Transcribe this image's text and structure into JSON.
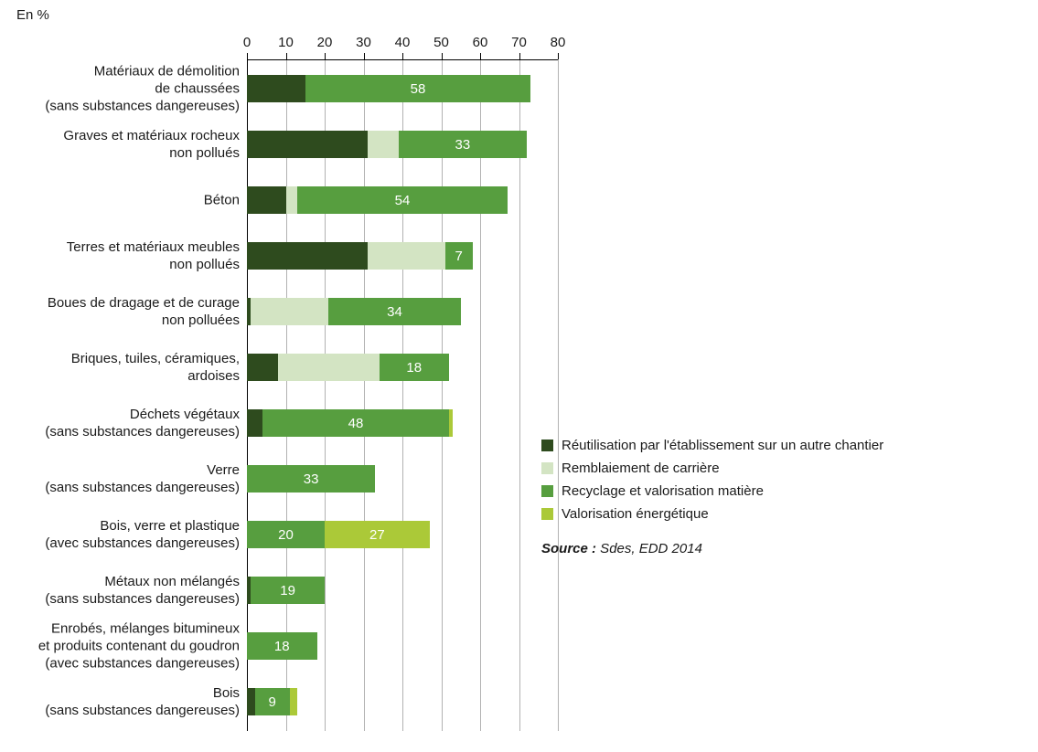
{
  "chart_data": {
    "type": "bar",
    "orientation": "horizontal",
    "stacked": true,
    "unit_label": "En %",
    "xlim": [
      0,
      80
    ],
    "x_ticks": [
      0,
      10,
      20,
      30,
      40,
      50,
      60,
      70,
      80
    ],
    "grid": true,
    "legend_position": "right",
    "series": [
      {
        "key": "reuse",
        "name": "Réutilisation par l'établissement sur un autre chantier",
        "color": "#2e4b1e"
      },
      {
        "key": "backfill",
        "name": "Remblaiement de carrière",
        "color": "#d3e4c3"
      },
      {
        "key": "recycle",
        "name": "Recyclage et valorisation matière",
        "color": "#579e3f"
      },
      {
        "key": "energy",
        "name": "Valorisation énergétique",
        "color": "#abc938"
      }
    ],
    "rows": [
      {
        "label_lines": [
          "Matériaux de démolition",
          "de chaussées",
          "(sans substances dangereuses)"
        ],
        "segments": [
          {
            "series": "reuse",
            "value": 15
          },
          {
            "series": "recycle",
            "value": 58,
            "label": "58"
          }
        ]
      },
      {
        "label_lines": [
          "Graves et matériaux rocheux",
          "non pollués"
        ],
        "segments": [
          {
            "series": "reuse",
            "value": 31
          },
          {
            "series": "backfill",
            "value": 8
          },
          {
            "series": "recycle",
            "value": 33,
            "label": "33"
          }
        ]
      },
      {
        "label_lines": [
          "Béton"
        ],
        "segments": [
          {
            "series": "reuse",
            "value": 10
          },
          {
            "series": "backfill",
            "value": 3
          },
          {
            "series": "recycle",
            "value": 54,
            "label": "54"
          }
        ]
      },
      {
        "label_lines": [
          "Terres et matériaux meubles",
          "non pollués"
        ],
        "segments": [
          {
            "series": "reuse",
            "value": 31
          },
          {
            "series": "backfill",
            "value": 20
          },
          {
            "series": "recycle",
            "value": 7,
            "label": "7"
          }
        ]
      },
      {
        "label_lines": [
          "Boues de dragage et de curage",
          "non polluées"
        ],
        "segments": [
          {
            "series": "reuse",
            "value": 1
          },
          {
            "series": "backfill",
            "value": 20
          },
          {
            "series": "recycle",
            "value": 34,
            "label": "34"
          }
        ]
      },
      {
        "label_lines": [
          "Briques, tuiles, céramiques,",
          "ardoises"
        ],
        "segments": [
          {
            "series": "reuse",
            "value": 8
          },
          {
            "series": "backfill",
            "value": 26
          },
          {
            "series": "recycle",
            "value": 18,
            "label": "18"
          }
        ]
      },
      {
        "label_lines": [
          "Déchets végétaux",
          "(sans substances dangereuses)"
        ],
        "segments": [
          {
            "series": "reuse",
            "value": 4
          },
          {
            "series": "recycle",
            "value": 48,
            "label": "48"
          },
          {
            "series": "energy",
            "value": 1
          }
        ]
      },
      {
        "label_lines": [
          "Verre",
          "(sans substances dangereuses)"
        ],
        "segments": [
          {
            "series": "recycle",
            "value": 33,
            "label": "33"
          }
        ]
      },
      {
        "label_lines": [
          "Bois, verre et plastique",
          "(avec substances dangereuses)"
        ],
        "segments": [
          {
            "series": "recycle",
            "value": 20,
            "label": "20"
          },
          {
            "series": "energy",
            "value": 27,
            "label": "27"
          }
        ]
      },
      {
        "label_lines": [
          "Métaux non mélangés",
          "(sans substances dangereuses)"
        ],
        "segments": [
          {
            "series": "reuse",
            "value": 1
          },
          {
            "series": "recycle",
            "value": 19,
            "label": "19"
          }
        ]
      },
      {
        "label_lines": [
          "Enrobés, mélanges bitumineux",
          "et produits contenant du goudron",
          "(avec substances dangereuses)"
        ],
        "segments": [
          {
            "series": "recycle",
            "value": 18,
            "label": "18"
          }
        ]
      },
      {
        "label_lines": [
          "Bois",
          "(sans substances dangereuses)"
        ],
        "segments": [
          {
            "series": "reuse",
            "value": 2
          },
          {
            "series": "recycle",
            "value": 9,
            "label": "9"
          },
          {
            "series": "energy",
            "value": 2
          }
        ]
      }
    ],
    "source_prefix": "Source :",
    "source_text": " Sdes, EDD 2014"
  }
}
